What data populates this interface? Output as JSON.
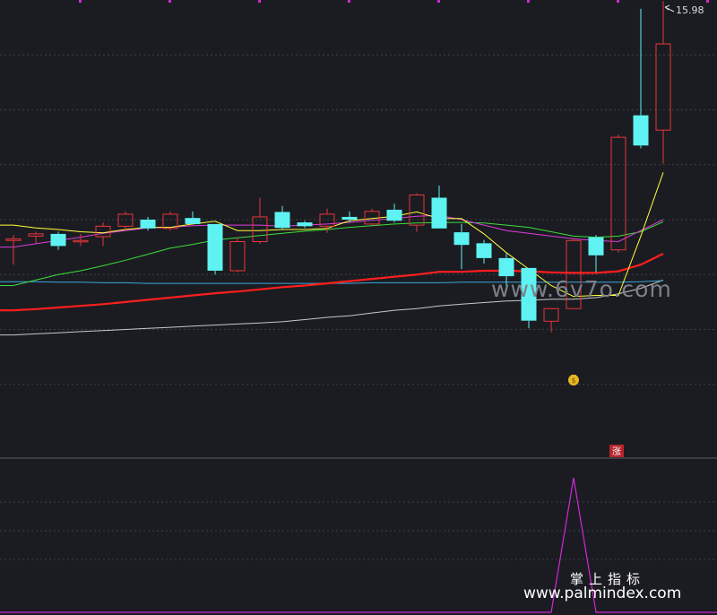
{
  "chart_data": [
    {
      "type": "candlestick",
      "panel": "main",
      "grid": true,
      "ylim": [
        8.0,
        16.0
      ],
      "labels": {
        "high_marker": "15.98",
        "watermark": "www.6v7o.com",
        "rise_badge": "涨"
      },
      "colors": {
        "up": "#e8363a",
        "down": "#5ef2f2",
        "ma5": "#ffff3c",
        "ma10": "#dd3cdd",
        "ma20": "#3cde3c",
        "ma60": "#ff1e1e",
        "ma120": "#3aa6df",
        "ma250": "#c8c8c8",
        "grid": "#3d3f4a"
      },
      "candles": [
        {
          "o": 11.62,
          "h": 11.72,
          "l": 11.18,
          "c": 11.65
        },
        {
          "o": 11.7,
          "h": 11.78,
          "l": 11.57,
          "c": 11.74
        },
        {
          "o": 11.74,
          "h": 11.78,
          "l": 11.45,
          "c": 11.52
        },
        {
          "o": 11.61,
          "h": 11.74,
          "l": 11.52,
          "c": 11.62
        },
        {
          "o": 11.69,
          "h": 11.95,
          "l": 11.52,
          "c": 11.88
        },
        {
          "o": 11.88,
          "h": 12.15,
          "l": 11.8,
          "c": 12.1
        },
        {
          "o": 12.0,
          "h": 12.05,
          "l": 11.8,
          "c": 11.84
        },
        {
          "o": 11.84,
          "h": 12.15,
          "l": 11.8,
          "c": 12.1
        },
        {
          "o": 12.03,
          "h": 12.15,
          "l": 11.92,
          "c": 11.92
        },
        {
          "o": 11.92,
          "h": 11.92,
          "l": 11.0,
          "c": 11.07
        },
        {
          "o": 11.07,
          "h": 11.68,
          "l": 11.04,
          "c": 11.6
        },
        {
          "o": 11.6,
          "h": 12.4,
          "l": 11.56,
          "c": 12.05
        },
        {
          "o": 12.14,
          "h": 12.25,
          "l": 11.82,
          "c": 11.85
        },
        {
          "o": 11.95,
          "h": 11.98,
          "l": 11.85,
          "c": 11.88
        },
        {
          "o": 11.88,
          "h": 12.2,
          "l": 11.76,
          "c": 12.1
        },
        {
          "o": 12.05,
          "h": 12.15,
          "l": 11.95,
          "c": 12.0
        },
        {
          "o": 11.92,
          "h": 12.2,
          "l": 11.9,
          "c": 12.15
        },
        {
          "o": 12.18,
          "h": 12.29,
          "l": 11.95,
          "c": 11.98
        },
        {
          "o": 11.9,
          "h": 12.48,
          "l": 11.78,
          "c": 12.45
        },
        {
          "o": 12.4,
          "h": 12.62,
          "l": 11.88,
          "c": 11.84
        },
        {
          "o": 11.77,
          "h": 11.92,
          "l": 11.1,
          "c": 11.54
        },
        {
          "o": 11.57,
          "h": 11.63,
          "l": 11.2,
          "c": 11.3
        },
        {
          "o": 11.3,
          "h": 11.4,
          "l": 10.73,
          "c": 10.97
        },
        {
          "o": 11.12,
          "h": 11.12,
          "l": 10.02,
          "c": 10.16
        },
        {
          "o": 10.15,
          "h": 10.38,
          "l": 9.95,
          "c": 10.38
        },
        {
          "o": 10.38,
          "h": 11.66,
          "l": 10.38,
          "c": 11.62
        },
        {
          "o": 11.68,
          "h": 11.72,
          "l": 11.04,
          "c": 11.35
        },
        {
          "o": 11.45,
          "h": 13.55,
          "l": 11.4,
          "c": 13.5
        },
        {
          "o": 13.9,
          "h": 15.84,
          "l": 13.3,
          "c": 13.35
        },
        {
          "o": 13.63,
          "h": 15.98,
          "l": 13.02,
          "c": 15.2
        }
      ],
      "ma5": [
        11.9,
        11.85,
        11.82,
        11.78,
        11.76,
        11.82,
        11.86,
        11.86,
        11.92,
        11.97,
        11.8,
        11.8,
        11.82,
        11.82,
        11.84,
        11.98,
        12.02,
        12.06,
        12.14,
        12.02,
        12.02,
        11.74,
        11.4,
        11.1,
        10.8,
        10.6,
        10.62,
        10.62,
        11.7,
        12.86
      ],
      "ma10": [
        11.5,
        11.56,
        11.62,
        11.68,
        11.75,
        11.8,
        11.85,
        11.86,
        11.89,
        11.9,
        11.9,
        11.9,
        11.88,
        11.9,
        11.92,
        11.95,
        11.99,
        12.02,
        12.06,
        12.08,
        12.0,
        11.9,
        11.8,
        11.75,
        11.7,
        11.65,
        11.62,
        11.6,
        11.8,
        12.0
      ],
      "ma20": [
        10.8,
        10.9,
        11.0,
        11.07,
        11.16,
        11.26,
        11.37,
        11.48,
        11.55,
        11.63,
        11.67,
        11.71,
        11.75,
        11.79,
        11.82,
        11.86,
        11.89,
        11.92,
        11.94,
        11.95,
        11.95,
        11.94,
        11.9,
        11.86,
        11.78,
        11.7,
        11.68,
        11.7,
        11.78,
        11.96
      ],
      "ma60": [
        10.35,
        10.37,
        10.4,
        10.43,
        10.46,
        10.5,
        10.54,
        10.58,
        10.62,
        10.66,
        10.69,
        10.73,
        10.77,
        10.8,
        10.84,
        10.88,
        10.92,
        10.96,
        11.0,
        11.05,
        11.05,
        11.07,
        11.07,
        11.06,
        11.04,
        11.03,
        11.03,
        11.06,
        11.18,
        11.38
      ],
      "ma120": [
        10.87,
        10.87,
        10.86,
        10.86,
        10.85,
        10.85,
        10.84,
        10.84,
        10.84,
        10.84,
        10.84,
        10.84,
        10.84,
        10.84,
        10.84,
        10.84,
        10.85,
        10.85,
        10.85,
        10.85,
        10.86,
        10.86,
        10.86,
        10.86,
        10.86,
        10.86,
        10.86,
        10.86,
        10.87,
        10.89
      ],
      "ma250": [
        9.9,
        9.92,
        9.94,
        9.96,
        9.98,
        10.0,
        10.02,
        10.04,
        10.06,
        10.08,
        10.1,
        10.12,
        10.14,
        10.18,
        10.22,
        10.25,
        10.3,
        10.35,
        10.38,
        10.43,
        10.46,
        10.49,
        10.52,
        10.53,
        10.55,
        10.55,
        10.58,
        10.65,
        10.75,
        10.9
      ]
    },
    {
      "type": "line",
      "panel": "indicator",
      "grid": true,
      "ylim": [
        0,
        1
      ],
      "colors": {
        "signal": "#cf28d8",
        "grid": "#3d3f4a"
      },
      "x": [
        -1,
        0,
        24,
        25,
        26,
        29
      ],
      "y": [
        0,
        0,
        0,
        1,
        0,
        0
      ]
    }
  ],
  "branding": {
    "name_cn": "掌上指标",
    "site": "www.palmindex.com"
  },
  "icons": {
    "signal_icon": "money-bag-icon"
  }
}
